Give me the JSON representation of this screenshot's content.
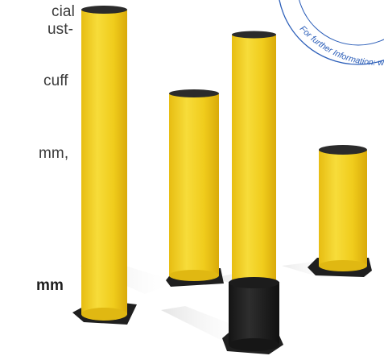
{
  "text_fragments": [
    {
      "id": "line1",
      "text": "cial"
    },
    {
      "id": "line2",
      "text": "ust-"
    },
    {
      "id": "line3",
      "text": "cuff"
    },
    {
      "id": "line4",
      "text": "mm,"
    },
    {
      "id": "line5",
      "text": "mm"
    }
  ],
  "badge": {
    "text": "For further Information: w",
    "ring_color": "#2a5db8"
  },
  "colors": {
    "bollard_yellow": "#f2cf1a",
    "bollard_cap": "#2b2b2b",
    "base_plate": "#1f1f1f",
    "sleeve": "#1c1c1c"
  }
}
